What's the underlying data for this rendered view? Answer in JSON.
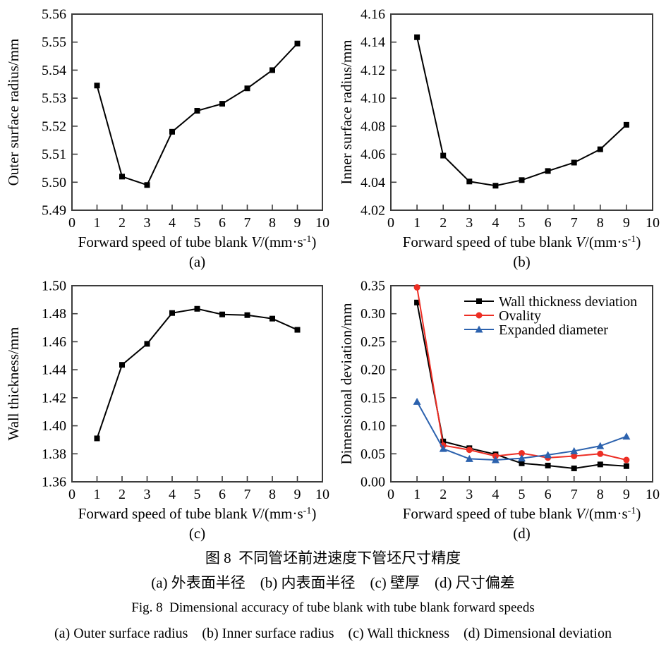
{
  "caption": {
    "cn_title": "图 8  不同管坯前进速度下管坯尺寸精度",
    "cn_subtitle": "(a) 外表面半径    (b) 内表面半径    (c) 壁厚    (d) 尺寸偏差",
    "en_title": "Fig. 8  Dimensional accuracy of tube blank with tube blank forward speeds",
    "en_subtitle": "(a) Outer surface radius    (b) Inner surface radius    (c) Wall thickness    (d) Dimensional deviation"
  },
  "colors": {
    "black": "#000000",
    "red": "#ed2e24",
    "blue": "#2c62ae",
    "frame": "#3c3c3c"
  },
  "chart_data": [
    {
      "id": "a",
      "type": "line",
      "panel_label": "(a)",
      "xlabel": "Forward speed of tube blank V/(mm·s⁻¹)",
      "ylabel": "Outer surface radius/mm",
      "xlim": [
        0,
        10
      ],
      "ylim": [
        5.49,
        5.56
      ],
      "xticks": [
        0,
        1,
        2,
        3,
        4,
        5,
        6,
        7,
        8,
        9,
        10
      ],
      "yticks": [
        5.49,
        5.5,
        5.51,
        5.52,
        5.53,
        5.54,
        5.55,
        5.56
      ],
      "ydecimals": 2,
      "grid": false,
      "x": [
        1,
        2,
        3,
        4,
        5,
        6,
        7,
        8,
        9
      ],
      "series": [
        {
          "name": "Outer surface radius",
          "color": "#000000",
          "marker": "square",
          "values": [
            5.5345,
            5.502,
            5.499,
            5.518,
            5.5255,
            5.528,
            5.5335,
            5.54,
            5.5495
          ]
        }
      ],
      "legend": {
        "show": false
      }
    },
    {
      "id": "b",
      "type": "line",
      "panel_label": "(b)",
      "xlabel": "Forward speed of tube blank V/(mm·s⁻¹)",
      "ylabel": "Inner surface radius/mm",
      "xlim": [
        0,
        10
      ],
      "ylim": [
        4.02,
        4.16
      ],
      "xticks": [
        0,
        1,
        2,
        3,
        4,
        5,
        6,
        7,
        8,
        9,
        10
      ],
      "yticks": [
        4.02,
        4.04,
        4.06,
        4.08,
        4.1,
        4.12,
        4.14,
        4.16
      ],
      "ydecimals": 2,
      "grid": false,
      "x": [
        1,
        2,
        3,
        4,
        5,
        6,
        7,
        8,
        9
      ],
      "series": [
        {
          "name": "Inner surface radius",
          "color": "#000000",
          "marker": "square",
          "values": [
            4.1435,
            4.059,
            4.0405,
            4.0375,
            4.0415,
            4.048,
            4.054,
            4.0635,
            4.081
          ]
        }
      ],
      "legend": {
        "show": false
      }
    },
    {
      "id": "c",
      "type": "line",
      "panel_label": "(c)",
      "xlabel": "Forward speed of tube blank V/(mm·s⁻¹)",
      "ylabel": "Wall thickness/mm",
      "xlim": [
        0,
        10
      ],
      "ylim": [
        1.36,
        1.5
      ],
      "xticks": [
        0,
        1,
        2,
        3,
        4,
        5,
        6,
        7,
        8,
        9,
        10
      ],
      "yticks": [
        1.36,
        1.38,
        1.4,
        1.42,
        1.44,
        1.46,
        1.48,
        1.5
      ],
      "ydecimals": 2,
      "grid": false,
      "x": [
        1,
        2,
        3,
        4,
        5,
        6,
        7,
        8,
        9
      ],
      "series": [
        {
          "name": "Wall thickness",
          "color": "#000000",
          "marker": "square",
          "values": [
            1.391,
            1.4435,
            1.4585,
            1.4805,
            1.4835,
            1.4795,
            1.479,
            1.4765,
            1.4685
          ]
        }
      ],
      "legend": {
        "show": false
      }
    },
    {
      "id": "d",
      "type": "line",
      "panel_label": "(d)",
      "xlabel": "Forward speed of tube blank V/(mm·s⁻¹)",
      "ylabel": "Dimensional deviation/mm",
      "xlim": [
        0,
        10
      ],
      "ylim": [
        0.0,
        0.35
      ],
      "xticks": [
        0,
        1,
        2,
        3,
        4,
        5,
        6,
        7,
        8,
        9,
        10
      ],
      "yticks": [
        0.0,
        0.05,
        0.1,
        0.15,
        0.2,
        0.25,
        0.3,
        0.35
      ],
      "ydecimals": 2,
      "grid": false,
      "x": [
        1,
        2,
        3,
        4,
        5,
        6,
        7,
        8,
        9
      ],
      "series": [
        {
          "name": "Wall thickness deviation",
          "color": "#000000",
          "marker": "square",
          "values": [
            0.32,
            0.072,
            0.06,
            0.049,
            0.033,
            0.029,
            0.024,
            0.031,
            0.028
          ]
        },
        {
          "name": "Ovality",
          "color": "#ed2e24",
          "marker": "circle",
          "values": [
            0.347,
            0.065,
            0.057,
            0.046,
            0.051,
            0.043,
            0.046,
            0.05,
            0.039
          ]
        },
        {
          "name": "Expanded diameter",
          "color": "#2c62ae",
          "marker": "triangle",
          "values": [
            0.143,
            0.059,
            0.041,
            0.039,
            0.042,
            0.048,
            0.055,
            0.064,
            0.081
          ]
        }
      ],
      "legend": {
        "show": true,
        "position": "top-right"
      }
    }
  ]
}
